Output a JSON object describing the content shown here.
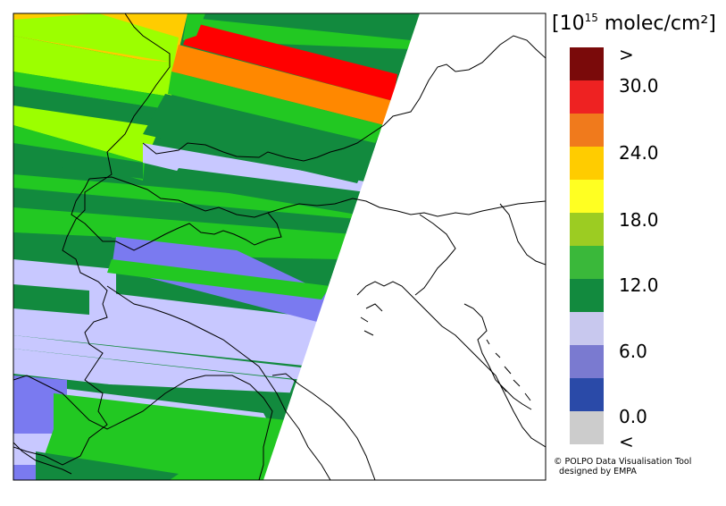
{
  "legend": {
    "unit_prefix": "[10",
    "unit_exponent": "15",
    "unit_suffix": " molec/cm²]",
    "colors": [
      "#7a0a0a",
      "#ee2222",
      "#f07a1c",
      "#ffcc00",
      "#ffff22",
      "#9ccc22",
      "#3ab83a",
      "#128a3e",
      "#c8c8ee",
      "#7a7ad0",
      "#2a4aa8",
      "#cccccc"
    ],
    "labels": [
      ">",
      "30.0",
      "24.0",
      "18.0",
      "12.0",
      "6.0",
      "0.0",
      "<"
    ]
  },
  "credit": {
    "line1": "© POLPO Data Visualisation Tool",
    "line2": "designed by EMPA"
  }
}
